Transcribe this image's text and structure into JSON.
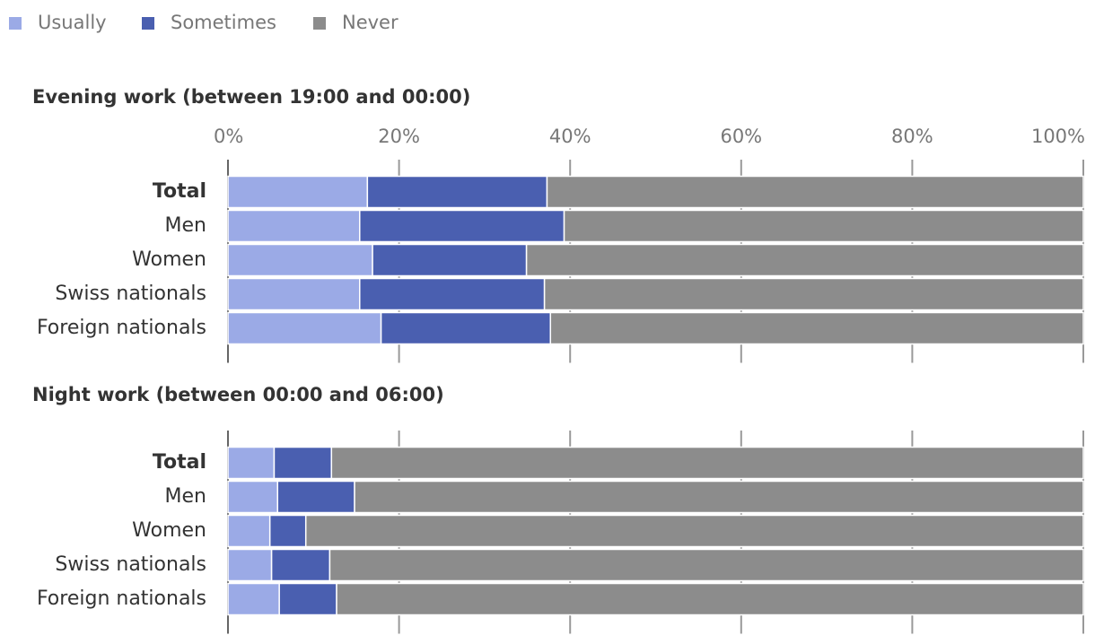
{
  "chart_data": [
    {
      "type": "bar",
      "orientation": "horizontal",
      "stacked": true,
      "title": "Evening work (between 19:00 and 00:00)",
      "categories": [
        "Total",
        "Men",
        "Women",
        "Swiss nationals",
        "Foreign nationals"
      ],
      "series": [
        {
          "name": "Usually",
          "color": "#9baae6",
          "values": [
            16.3,
            15.4,
            16.9,
            15.4,
            17.9
          ]
        },
        {
          "name": "Sometimes",
          "color": "#4a5fb0",
          "values": [
            21.0,
            23.9,
            18.0,
            21.6,
            19.8
          ]
        },
        {
          "name": "Never",
          "color": "#8c8c8c",
          "values": [
            62.7,
            60.7,
            65.1,
            63.0,
            62.3
          ]
        }
      ],
      "xlim": [
        0,
        100
      ],
      "xticks": [
        {
          "value": 0,
          "label": "0%"
        },
        {
          "value": 20,
          "label": "20%"
        },
        {
          "value": 40,
          "label": "40%"
        },
        {
          "value": 60,
          "label": "60%"
        },
        {
          "value": 80,
          "label": "80%"
        },
        {
          "value": 100,
          "label": "100%"
        }
      ],
      "grid": true
    },
    {
      "type": "bar",
      "orientation": "horizontal",
      "stacked": true,
      "title": "Night work (between 00:00 and 06:00)",
      "categories": [
        "Total",
        "Men",
        "Women",
        "Swiss nationals",
        "Foreign nationals"
      ],
      "series": [
        {
          "name": "Usually",
          "color": "#9baae6",
          "values": [
            5.4,
            5.8,
            4.9,
            5.1,
            6.0
          ]
        },
        {
          "name": "Sometimes",
          "color": "#4a5fb0",
          "values": [
            6.7,
            9.0,
            4.2,
            6.8,
            6.7
          ]
        },
        {
          "name": "Never",
          "color": "#8c8c8c",
          "values": [
            87.9,
            85.2,
            90.9,
            88.1,
            87.3
          ]
        }
      ],
      "xlim": [
        0,
        100
      ],
      "xticks": [
        0,
        20,
        40,
        60,
        80,
        100
      ],
      "grid": true
    }
  ]
}
